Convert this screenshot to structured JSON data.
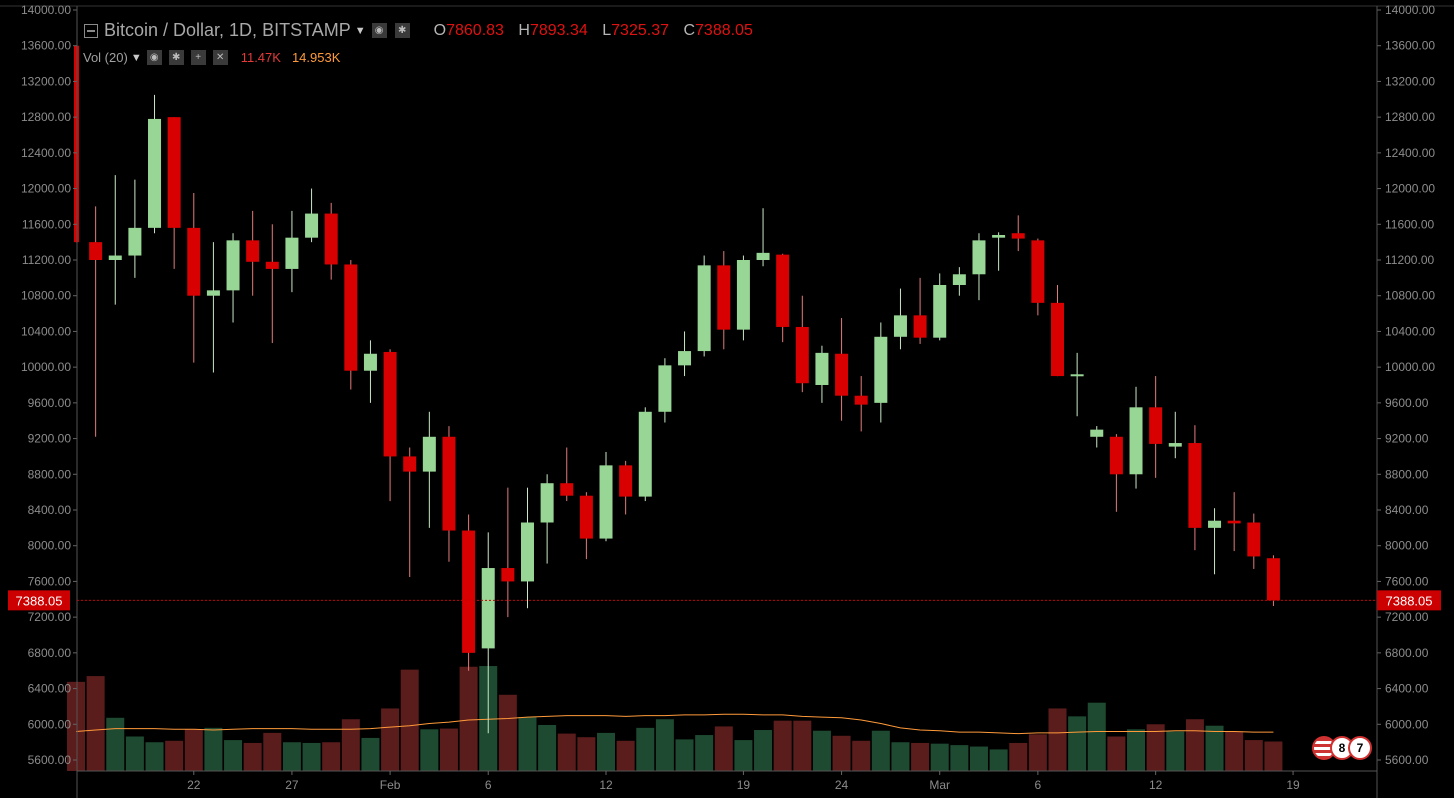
{
  "header": {
    "symbol_title": "Bitcoin / Dollar, 1D, BITSTAMP",
    "ohlc": [
      {
        "label": "O",
        "value": "7860.83"
      },
      {
        "label": "H",
        "value": "7893.34"
      },
      {
        "label": "L",
        "value": "7325.37"
      },
      {
        "label": "C",
        "value": "7388.05"
      }
    ]
  },
  "volume_indicator": {
    "label": "Vol (20)",
    "volume_value": "11.47K",
    "ma_value": "14.953K",
    "volume_color": "#e23a3a",
    "ma_color": "#ff9a3a"
  },
  "event_flags": [
    "8",
    "7"
  ],
  "colors": {
    "up": "#98d696",
    "down": "#d80000",
    "vol_up": "#1d4a30",
    "vol_down": "#5b1c1c",
    "price_line": "#cc0000",
    "axis_text": "#8c8c8c"
  },
  "chart_data": {
    "type": "candlestick",
    "title": "Bitcoin / Dollar, 1D, BITSTAMP",
    "ylim": [
      5400,
      14000
    ],
    "y_ticks": [
      "14000.00",
      "13600.00",
      "13200.00",
      "12800.00",
      "12400.00",
      "12000.00",
      "11600.00",
      "11200.00",
      "10800.00",
      "10400.00",
      "10000.00",
      "9600.00",
      "9200.00",
      "8800.00",
      "8400.00",
      "8000.00",
      "7600.00",
      "7200.00",
      "6800.00",
      "6400.00",
      "6000.00",
      "5600.00"
    ],
    "x_ticks": [
      {
        "label": "22",
        "index": 6
      },
      {
        "label": "27",
        "index": 11
      },
      {
        "label": "Feb",
        "index": 16
      },
      {
        "label": "6",
        "index": 21
      },
      {
        "label": "12",
        "index": 27
      },
      {
        "label": "19",
        "index": 34
      },
      {
        "label": "24",
        "index": 39
      },
      {
        "label": "Mar",
        "index": 44
      },
      {
        "label": "6",
        "index": 49
      },
      {
        "label": "12",
        "index": 55
      },
      {
        "label": "19",
        "index": 62
      }
    ],
    "last_price": "7388.05",
    "candles": [
      [
        13600,
        13600,
        11400,
        11400
      ],
      [
        11400,
        11800,
        9220,
        11200
      ],
      [
        11200,
        12150,
        10700,
        11250
      ],
      [
        11250,
        12100,
        11000,
        11560
      ],
      [
        11560,
        13050,
        11500,
        12780
      ],
      [
        12800,
        12800,
        11100,
        11560
      ],
      [
        11560,
        11950,
        10050,
        10800
      ],
      [
        10800,
        11400,
        9940,
        10860
      ],
      [
        10860,
        11500,
        10500,
        11420
      ],
      [
        11420,
        11750,
        10800,
        11180
      ],
      [
        11180,
        11600,
        10270,
        11100
      ],
      [
        11100,
        11750,
        10840,
        11450
      ],
      [
        11450,
        12000,
        11400,
        11720
      ],
      [
        11720,
        11840,
        10980,
        11150
      ],
      [
        11150,
        11200,
        9750,
        9960
      ],
      [
        9960,
        10300,
        9600,
        10150
      ],
      [
        10170,
        10200,
        8500,
        9000
      ],
      [
        9000,
        9100,
        7650,
        8830
      ],
      [
        8830,
        9500,
        8200,
        9220
      ],
      [
        9220,
        9340,
        7820,
        8170
      ],
      [
        8170,
        8350,
        6600,
        6800
      ],
      [
        6850,
        8150,
        5900,
        7750
      ],
      [
        7750,
        8650,
        7200,
        7600
      ],
      [
        7600,
        8650,
        7300,
        8260
      ],
      [
        8260,
        8800,
        7800,
        8700
      ],
      [
        8700,
        9100,
        8500,
        8560
      ],
      [
        8560,
        8600,
        7850,
        8080
      ],
      [
        8080,
        9050,
        8050,
        8900
      ],
      [
        8900,
        8950,
        8350,
        8550
      ],
      [
        8550,
        9550,
        8500,
        9500
      ],
      [
        9500,
        10100,
        9380,
        10020
      ],
      [
        10020,
        10400,
        9900,
        10180
      ],
      [
        10180,
        11250,
        10120,
        11140
      ],
      [
        11140,
        11300,
        10200,
        10420
      ],
      [
        10420,
        11250,
        10300,
        11200
      ],
      [
        11200,
        11780,
        11130,
        11280
      ],
      [
        11260,
        11270,
        10280,
        10450
      ],
      [
        10450,
        10800,
        9720,
        9820
      ],
      [
        9800,
        10240,
        9600,
        10160
      ],
      [
        10150,
        10550,
        9400,
        9680
      ],
      [
        9680,
        9900,
        9280,
        9580
      ],
      [
        9600,
        10500,
        9380,
        10340
      ],
      [
        10340,
        10880,
        10200,
        10580
      ],
      [
        10580,
        11000,
        10260,
        10330
      ],
      [
        10330,
        11050,
        10300,
        10920
      ],
      [
        10920,
        11120,
        10800,
        11040
      ],
      [
        11040,
        11500,
        10750,
        11420
      ],
      [
        11450,
        11510,
        11080,
        11480
      ],
      [
        11500,
        11700,
        11300,
        11440
      ],
      [
        11420,
        11440,
        10580,
        10720
      ],
      [
        10720,
        10920,
        9900,
        9900
      ],
      [
        9900,
        10160,
        9450,
        9920
      ],
      [
        9220,
        9340,
        9100,
        9300
      ],
      [
        9220,
        9250,
        8380,
        8800
      ],
      [
        8800,
        9780,
        8640,
        9550
      ],
      [
        9550,
        9900,
        8760,
        9140
      ],
      [
        9110,
        9500,
        8980,
        9150
      ],
      [
        9150,
        9350,
        7950,
        8200
      ],
      [
        8200,
        8420,
        7680,
        8280
      ],
      [
        8280,
        8600,
        7940,
        8250
      ],
      [
        8260,
        8360,
        7740,
        7880
      ],
      [
        7860,
        7893,
        7325,
        7388
      ]
    ],
    "volume_ylim": [
      5400,
      7500
    ],
    "volumes": [
      6640,
      6720,
      6140,
      5880,
      5800,
      5820,
      5980,
      6000,
      5830,
      5790,
      5930,
      5800,
      5790,
      5800,
      6120,
      5860,
      6270,
      6810,
      5980,
      5990,
      6850,
      6860,
      6460,
      6150,
      6040,
      5920,
      5870,
      5930,
      5820,
      6000,
      6120,
      5840,
      5900,
      6020,
      5830,
      5970,
      6100,
      6100,
      5960,
      5890,
      5820,
      5960,
      5800,
      5790,
      5780,
      5760,
      5740,
      5700,
      5790,
      5910,
      6270,
      6160,
      6350,
      5880,
      5980,
      6050,
      5950,
      6120,
      6030,
      5950,
      5830,
      5810
    ],
    "volume_ma": [
      5950,
      5970,
      5990,
      5990,
      5990,
      5980,
      5980,
      5970,
      5980,
      5990,
      5990,
      5990,
      5980,
      5980,
      5980,
      5990,
      6010,
      6030,
      6060,
      6080,
      6110,
      6120,
      6130,
      6150,
      6160,
      6170,
      6170,
      6170,
      6160,
      6170,
      6170,
      6180,
      6180,
      6190,
      6190,
      6180,
      6180,
      6160,
      6150,
      6140,
      6110,
      6060,
      6000,
      5970,
      5960,
      5940,
      5940,
      5930,
      5920,
      5930,
      5930,
      5940,
      5950,
      5950,
      5950,
      5950,
      5960,
      5960,
      5950,
      5950,
      5940,
      5940
    ]
  }
}
